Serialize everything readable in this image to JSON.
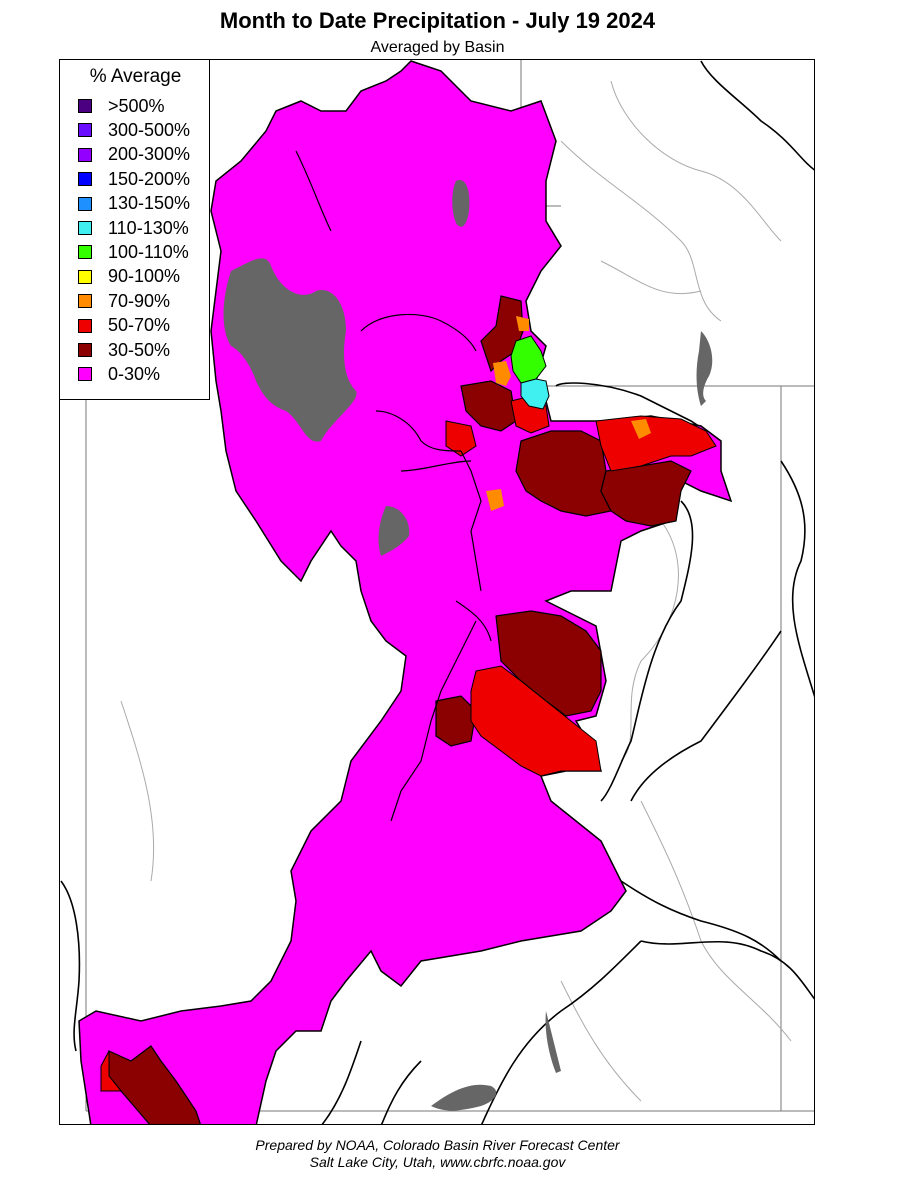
{
  "title": "Month to Date Precipitation - July 19 2024",
  "subtitle": "Averaged by Basin",
  "legend": {
    "title": "% Average",
    "items": [
      {
        "label": ">500%",
        "color": "#4b0082"
      },
      {
        "label": "300-500%",
        "color": "#6a0dff"
      },
      {
        "label": "200-300%",
        "color": "#9400ff"
      },
      {
        "label": "150-200%",
        "color": "#0000ff"
      },
      {
        "label": "130-150%",
        "color": "#1e90ff"
      },
      {
        "label": "110-130%",
        "color": "#40f0f0"
      },
      {
        "label": "100-110%",
        "color": "#33ff00"
      },
      {
        "label": "90-100%",
        "color": "#ffff00"
      },
      {
        "label": "70-90%",
        "color": "#ff8c00"
      },
      {
        "label": "50-70%",
        "color": "#ee0000"
      },
      {
        "label": "30-50%",
        "color": "#8b0000"
      },
      {
        "label": "0-30%",
        "color": "#ff00ff"
      }
    ]
  },
  "colors": {
    "no_data": "#666666",
    "border": "#000000",
    "rivers": "#aaaaaa"
  },
  "footer": {
    "line1": "Prepared by NOAA, Colorado Basin River Forecast Center",
    "line2": "Salt Lake City, Utah, www.cbrfc.noaa.gov"
  }
}
